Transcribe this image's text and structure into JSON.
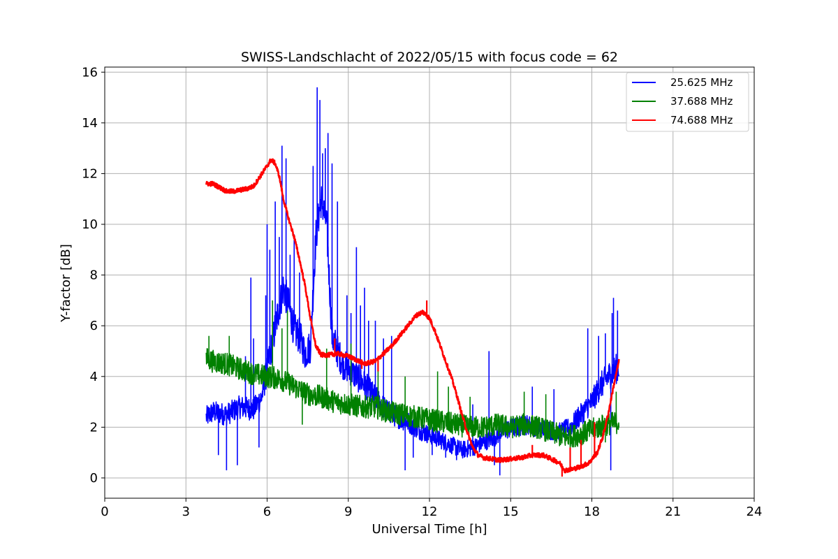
{
  "chart_data": {
    "type": "line",
    "title": "SWISS-Landschlacht of 2022/05/15 with focus code = 62",
    "xlabel": "Universal Time [h]",
    "ylabel": "Y-factor [dB]",
    "xlim": [
      0,
      24
    ],
    "ylim": [
      -0.8,
      16.2
    ],
    "xticks": [
      0,
      3,
      6,
      9,
      12,
      15,
      18,
      21,
      24
    ],
    "xtick_labels": [
      "0",
      "3",
      "6",
      "9",
      "12",
      "15",
      "18",
      "21",
      "24"
    ],
    "yticks": [
      0,
      2,
      4,
      6,
      8,
      10,
      12,
      14,
      16
    ],
    "ytick_labels": [
      "0",
      "2",
      "4",
      "6",
      "8",
      "10",
      "12",
      "14",
      "16"
    ],
    "grid": true,
    "legend_position": "top-right",
    "series": [
      {
        "name": "25.625 MHz",
        "color": "#0000ff",
        "x": [
          3.75,
          4.0,
          4.5,
          5.0,
          5.5,
          5.8,
          6.1,
          6.4,
          6.6,
          6.8,
          7.0,
          7.2,
          7.4,
          7.6,
          7.8,
          8.0,
          8.2,
          8.4,
          8.6,
          8.8,
          9.0,
          9.3,
          9.6,
          9.9,
          10.2,
          10.5,
          10.8,
          11.2,
          11.6,
          12.0,
          12.4,
          12.8,
          13.2,
          13.6,
          14.0,
          14.4,
          14.8,
          15.2,
          15.6,
          16.0,
          16.4,
          16.8,
          17.2,
          17.6,
          18.0,
          18.3,
          18.6,
          19.0
        ],
        "y": [
          2.4,
          2.6,
          2.5,
          2.8,
          2.7,
          3.2,
          4.8,
          6.5,
          7.5,
          6.8,
          5.8,
          5.6,
          4.9,
          5.2,
          9.5,
          11.0,
          10.0,
          5.6,
          5.0,
          4.5,
          4.3,
          4.0,
          3.7,
          3.3,
          2.9,
          2.6,
          2.4,
          2.2,
          1.9,
          1.7,
          1.5,
          1.3,
          1.1,
          1.2,
          1.4,
          1.6,
          1.9,
          2.0,
          2.1,
          2.0,
          1.9,
          1.8,
          2.0,
          2.5,
          3.0,
          3.6,
          4.0,
          4.4
        ],
        "spikes": [
          {
            "x": 4.2,
            "y": 0.9
          },
          {
            "x": 4.5,
            "y": 0.3
          },
          {
            "x": 4.9,
            "y": 0.5
          },
          {
            "x": 5.2,
            "y": 4.8
          },
          {
            "x": 5.4,
            "y": 7.9
          },
          {
            "x": 5.5,
            "y": 5.5
          },
          {
            "x": 5.7,
            "y": 1.2
          },
          {
            "x": 5.95,
            "y": 7.2
          },
          {
            "x": 6.0,
            "y": 10.0
          },
          {
            "x": 6.1,
            "y": 9.0
          },
          {
            "x": 6.3,
            "y": 10.9
          },
          {
            "x": 6.45,
            "y": 9.5
          },
          {
            "x": 6.55,
            "y": 13.1
          },
          {
            "x": 6.7,
            "y": 12.6
          },
          {
            "x": 6.85,
            "y": 8.8
          },
          {
            "x": 7.0,
            "y": 9.6
          },
          {
            "x": 7.2,
            "y": 8.1
          },
          {
            "x": 7.7,
            "y": 12.3
          },
          {
            "x": 7.85,
            "y": 15.4
          },
          {
            "x": 7.95,
            "y": 14.9
          },
          {
            "x": 8.05,
            "y": 12.8
          },
          {
            "x": 8.15,
            "y": 13.0
          },
          {
            "x": 8.25,
            "y": 13.6
          },
          {
            "x": 8.4,
            "y": 12.4
          },
          {
            "x": 8.6,
            "y": 10.9
          },
          {
            "x": 8.95,
            "y": 7.2
          },
          {
            "x": 9.1,
            "y": 6.5
          },
          {
            "x": 9.3,
            "y": 9.1
          },
          {
            "x": 9.45,
            "y": 6.8
          },
          {
            "x": 9.6,
            "y": 7.5
          },
          {
            "x": 9.75,
            "y": 6.2
          },
          {
            "x": 10.0,
            "y": 6.2
          },
          {
            "x": 10.3,
            "y": 5.5
          },
          {
            "x": 10.6,
            "y": 5.6
          },
          {
            "x": 11.1,
            "y": 0.3
          },
          {
            "x": 11.4,
            "y": 0.8
          },
          {
            "x": 12.1,
            "y": 0.9
          },
          {
            "x": 12.6,
            "y": 0.8
          },
          {
            "x": 13.0,
            "y": 0.7
          },
          {
            "x": 13.6,
            "y": 2.9
          },
          {
            "x": 14.2,
            "y": 5.0
          },
          {
            "x": 14.4,
            "y": 0.5
          },
          {
            "x": 14.6,
            "y": 0.1
          },
          {
            "x": 15.8,
            "y": 3.6
          },
          {
            "x": 16.6,
            "y": 3.5
          },
          {
            "x": 17.5,
            "y": 2.8
          },
          {
            "x": 17.85,
            "y": 5.9
          },
          {
            "x": 18.25,
            "y": 5.6
          },
          {
            "x": 18.5,
            "y": 5.7
          },
          {
            "x": 18.75,
            "y": 6.5
          },
          {
            "x": 18.8,
            "y": 7.1
          },
          {
            "x": 18.7,
            "y": 0.3
          },
          {
            "x": 18.95,
            "y": 6.6
          }
        ]
      },
      {
        "name": "37.688 MHz",
        "color": "#008000",
        "x": [
          3.75,
          4.0,
          4.5,
          5.0,
          5.5,
          6.0,
          6.5,
          7.0,
          7.5,
          8.0,
          8.5,
          9.0,
          9.5,
          10.0,
          10.5,
          11.0,
          11.5,
          12.0,
          12.5,
          13.0,
          13.5,
          14.0,
          14.5,
          15.0,
          15.5,
          16.0,
          16.5,
          17.0,
          17.5,
          18.0,
          18.5,
          19.0
        ],
        "y": [
          4.7,
          4.6,
          4.5,
          4.3,
          4.1,
          4.0,
          3.9,
          3.6,
          3.3,
          3.2,
          3.0,
          2.9,
          2.8,
          2.8,
          2.6,
          2.5,
          2.4,
          2.3,
          2.2,
          2.1,
          2.0,
          2.0,
          2.1,
          2.0,
          2.1,
          2.0,
          1.8,
          1.6,
          1.7,
          1.9,
          2.1,
          2.2
        ],
        "spikes": [
          {
            "x": 3.85,
            "y": 5.6
          },
          {
            "x": 4.6,
            "y": 5.6
          },
          {
            "x": 6.2,
            "y": 7.0
          },
          {
            "x": 6.55,
            "y": 5.9
          },
          {
            "x": 6.75,
            "y": 6.6
          },
          {
            "x": 7.3,
            "y": 2.1
          },
          {
            "x": 8.2,
            "y": 5.1
          },
          {
            "x": 9.1,
            "y": 5.3
          },
          {
            "x": 10.1,
            "y": 4.6
          },
          {
            "x": 11.1,
            "y": 4.0
          },
          {
            "x": 12.3,
            "y": 4.2
          },
          {
            "x": 12.7,
            "y": 3.6
          },
          {
            "x": 13.5,
            "y": 3.2
          },
          {
            "x": 15.5,
            "y": 3.4
          },
          {
            "x": 16.3,
            "y": 3.3
          },
          {
            "x": 18.5,
            "y": 1.4
          },
          {
            "x": 18.9,
            "y": 3.4
          }
        ]
      },
      {
        "name": "74.688 MHz",
        "color": "#ff0000",
        "x": [
          3.75,
          4.0,
          4.25,
          4.5,
          4.75,
          5.0,
          5.25,
          5.5,
          5.75,
          6.0,
          6.15,
          6.3,
          6.45,
          6.6,
          6.8,
          7.0,
          7.2,
          7.4,
          7.6,
          7.8,
          8.0,
          8.3,
          8.6,
          9.0,
          9.3,
          9.6,
          10.0,
          10.3,
          10.6,
          10.9,
          11.2,
          11.5,
          11.75,
          12.0,
          12.2,
          12.4,
          12.6,
          12.8,
          13.0,
          13.2,
          13.4,
          13.6,
          13.8,
          14.0,
          14.3,
          14.6,
          15.0,
          15.4,
          15.8,
          16.2,
          16.5,
          16.8,
          17.0,
          17.3,
          17.6,
          17.9,
          18.2,
          18.4,
          18.6,
          18.8,
          19.0
        ],
        "y": [
          11.6,
          11.6,
          11.45,
          11.3,
          11.3,
          11.35,
          11.4,
          11.5,
          11.9,
          12.3,
          12.55,
          12.4,
          11.9,
          11.0,
          10.2,
          9.5,
          8.6,
          7.6,
          6.3,
          5.2,
          4.85,
          4.85,
          4.9,
          4.8,
          4.65,
          4.5,
          4.6,
          4.9,
          5.2,
          5.6,
          6.0,
          6.4,
          6.55,
          6.3,
          5.8,
          5.2,
          4.6,
          4.0,
          3.3,
          2.5,
          1.8,
          1.2,
          0.9,
          0.8,
          0.75,
          0.7,
          0.75,
          0.8,
          0.9,
          0.9,
          0.75,
          0.6,
          0.3,
          0.35,
          0.45,
          0.6,
          1.0,
          1.6,
          2.5,
          3.6,
          4.6
        ],
        "spikes": [
          {
            "x": 8.5,
            "y": 5.5
          },
          {
            "x": 9.5,
            "y": 4.3
          },
          {
            "x": 10.1,
            "y": 4.2
          },
          {
            "x": 11.9,
            "y": 7.0
          },
          {
            "x": 15.8,
            "y": 1.3
          },
          {
            "x": 16.9,
            "y": 0.05
          },
          {
            "x": 17.2,
            "y": 1.2
          },
          {
            "x": 17.6,
            "y": 1.5
          },
          {
            "x": 18.1,
            "y": 2.2
          }
        ]
      }
    ]
  }
}
